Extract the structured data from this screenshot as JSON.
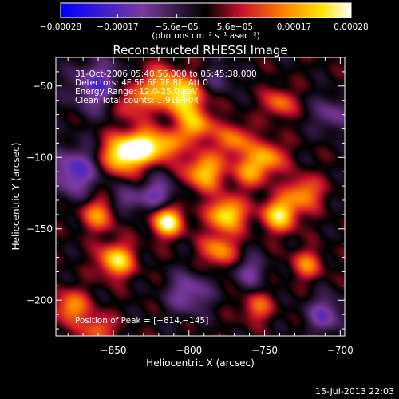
{
  "chart_data": {
    "type": "heatmap",
    "title": "Reconstructed RHESSI Image",
    "xlabel": "Heliocentric X (arcsec)",
    "ylabel": "Heliocentric Y (arcsec)",
    "xlim": [
      -888,
      -697
    ],
    "ylim": [
      -225,
      -30
    ],
    "x_ticks": [
      -850,
      -800,
      -750,
      -700
    ],
    "x_tick_labels": [
      "−850",
      "−800",
      "−750",
      "−700"
    ],
    "y_ticks": [
      -50,
      -100,
      -150,
      -200
    ],
    "y_tick_labels": [
      "−50",
      "−100",
      "−150",
      "−200"
    ],
    "colorbar": {
      "vmin": -0.00028,
      "vmax": 0.00028,
      "ticks": [
        -0.00028,
        -0.00017,
        -5.6e-05,
        5.6e-05,
        0.00017,
        0.00028
      ],
      "tick_labels": [
        "−0.00028",
        "−0.00017",
        "−5.6e−05",
        "5.6e−05",
        "0.00017",
        "0.00028"
      ],
      "units_label": "(photons cm⁻² s⁻¹ asec⁻²)",
      "colormap_stops": [
        "#0000ff",
        "#7a3aa0",
        "#000000",
        "#c8102e",
        "#ff7a00",
        "#ffe600",
        "#ffffff"
      ]
    },
    "annotations": [
      "31-Oct-2006 05:40:56.000 to 05:45:38.000",
      "Detectors: 4F 5F 6F 7F 8F, Att 0",
      "Energy Range: 12.0-25.0 keV",
      "Clean     Total counts: 1.91E+04",
      "Position of Peak = [−814,−145]"
    ],
    "peak": {
      "x": -814,
      "y": -145
    },
    "sources": [
      {
        "x": -860,
        "y": -50,
        "amp": -0.6,
        "s": 12
      },
      {
        "x": -876,
        "y": -110,
        "amp": -0.6,
        "s": 12
      },
      {
        "x": -838,
        "y": -60,
        "amp": 0.5,
        "s": 9
      },
      {
        "x": -818,
        "y": -50,
        "amp": 0.55,
        "s": 10
      },
      {
        "x": -803,
        "y": -58,
        "amp": 0.75,
        "s": 9
      },
      {
        "x": -796,
        "y": -78,
        "amp": 0.7,
        "s": 8
      },
      {
        "x": -844,
        "y": -98,
        "amp": 1.0,
        "s": 9
      },
      {
        "x": -830,
        "y": -92,
        "amp": 0.85,
        "s": 8
      },
      {
        "x": -815,
        "y": -92,
        "amp": 0.6,
        "s": 7
      },
      {
        "x": -790,
        "y": -110,
        "amp": 0.75,
        "s": 9
      },
      {
        "x": -770,
        "y": -88,
        "amp": 0.55,
        "s": 8
      },
      {
        "x": -760,
        "y": -110,
        "amp": 0.5,
        "s": 8
      },
      {
        "x": -748,
        "y": -100,
        "amp": 0.6,
        "s": 8
      },
      {
        "x": -740,
        "y": -62,
        "amp": 0.5,
        "s": 7
      },
      {
        "x": -860,
        "y": -140,
        "amp": 0.55,
        "s": 8
      },
      {
        "x": -814,
        "y": -145,
        "amp": 1.0,
        "s": 7
      },
      {
        "x": -775,
        "y": -140,
        "amp": 0.9,
        "s": 8
      },
      {
        "x": -740,
        "y": -140,
        "amp": 0.85,
        "s": 8
      },
      {
        "x": -724,
        "y": -125,
        "amp": 0.6,
        "s": 8
      },
      {
        "x": -848,
        "y": -172,
        "amp": 0.85,
        "s": 8
      },
      {
        "x": -780,
        "y": -165,
        "amp": 0.6,
        "s": 8
      },
      {
        "x": -722,
        "y": -175,
        "amp": 0.5,
        "s": 7
      },
      {
        "x": -878,
        "y": -205,
        "amp": 0.6,
        "s": 8
      },
      {
        "x": -860,
        "y": -220,
        "amp": 0.5,
        "s": 7
      },
      {
        "x": -755,
        "y": -205,
        "amp": 0.45,
        "s": 7
      },
      {
        "x": -800,
        "y": -195,
        "amp": -0.5,
        "s": 10
      },
      {
        "x": -820,
        "y": -125,
        "amp": -0.5,
        "s": 8
      },
      {
        "x": -760,
        "y": -180,
        "amp": -0.4,
        "s": 8
      },
      {
        "x": -705,
        "y": -70,
        "amp": -0.4,
        "s": 9
      },
      {
        "x": -710,
        "y": -210,
        "amp": -0.5,
        "s": 9
      },
      {
        "x": -840,
        "y": -130,
        "amp": -0.4,
        "s": 7
      },
      {
        "x": -780,
        "y": -45,
        "amp": -0.3,
        "s": 7
      }
    ]
  },
  "footer": {
    "timestamp": "15-Jul-2013 22:03"
  }
}
